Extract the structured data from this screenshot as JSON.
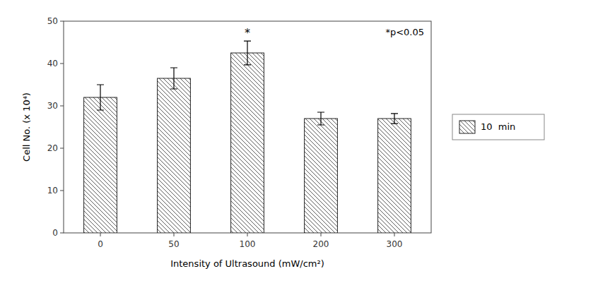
{
  "chart_data": {
    "type": "bar",
    "categories": [
      "0",
      "50",
      "100",
      "200",
      "300"
    ],
    "series": [
      {
        "name": "10  min",
        "color": "white",
        "values": [
          32.0,
          36.5,
          42.5,
          27.0,
          27.0
        ],
        "errors": [
          3.0,
          2.5,
          2.8,
          1.5,
          1.2
        ]
      }
    ],
    "xlabel": "Intensity of Ultrasound (mW/cm²)",
    "ylabel": "Cell No. (x 10⁴)",
    "ylim": [
      0,
      50
    ],
    "yticks": [
      0,
      10,
      20,
      30,
      40,
      50
    ],
    "annotations": [
      {
        "text": "*",
        "category": "100"
      },
      {
        "text": "*p<0.05"
      }
    ],
    "grid": false,
    "legend": "right"
  }
}
